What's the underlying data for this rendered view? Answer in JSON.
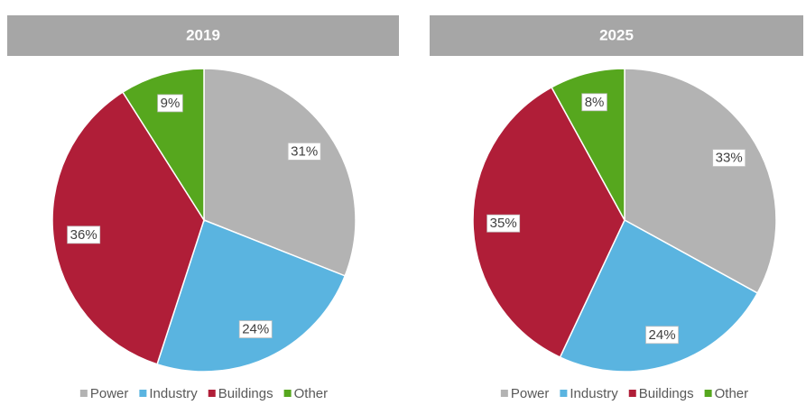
{
  "chart_data": [
    {
      "type": "pie",
      "title": "2019",
      "categories": [
        "Power",
        "Industry",
        "Buildings",
        "Other"
      ],
      "values": [
        31,
        24,
        36,
        9
      ],
      "value_labels": [
        "31%",
        "24%",
        "36%",
        "9%"
      ],
      "colors": [
        "#b3b3b3",
        "#5ab4e0",
        "#b01e38",
        "#56a71e"
      ]
    },
    {
      "type": "pie",
      "title": "2025",
      "categories": [
        "Power",
        "Industry",
        "Buildings",
        "Other"
      ],
      "values": [
        33,
        24,
        35,
        8
      ],
      "value_labels": [
        "33%",
        "24%",
        "35%",
        "8%"
      ],
      "colors": [
        "#b3b3b3",
        "#5ab4e0",
        "#b01e38",
        "#56a71e"
      ]
    }
  ]
}
